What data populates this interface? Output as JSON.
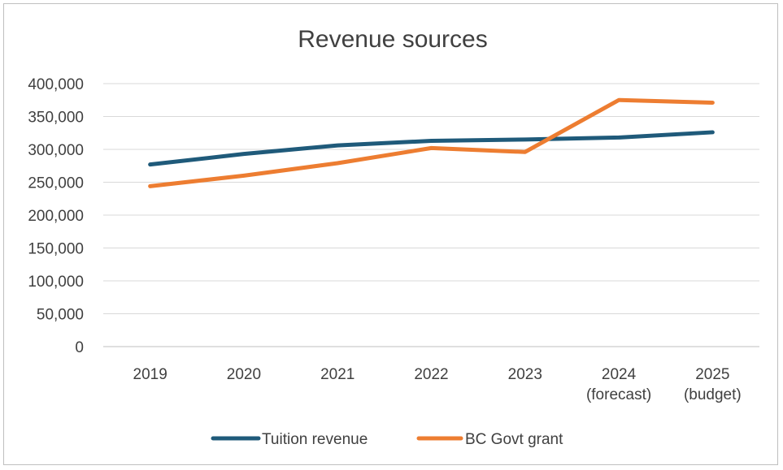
{
  "chart_data": {
    "type": "line",
    "title": "Revenue sources",
    "categories": [
      [
        "2019"
      ],
      [
        "2020"
      ],
      [
        "2021"
      ],
      [
        "2022"
      ],
      [
        "2023"
      ],
      [
        "2024",
        "(forecast)"
      ],
      [
        "2025",
        "(budget)"
      ]
    ],
    "series": [
      {
        "name": "Tuition revenue",
        "color": "#1f5a7a",
        "values": [
          277000,
          293000,
          306000,
          313000,
          315000,
          318000,
          326000
        ]
      },
      {
        "name": "BC Govt grant",
        "color": "#ed7d31",
        "values": [
          244000,
          260000,
          279000,
          302000,
          296000,
          375000,
          371000
        ]
      }
    ],
    "ylim": [
      0,
      400000
    ],
    "yticks": [
      0,
      50000,
      100000,
      150000,
      200000,
      250000,
      300000,
      350000,
      400000
    ],
    "grid": true,
    "legend": "bottom"
  }
}
